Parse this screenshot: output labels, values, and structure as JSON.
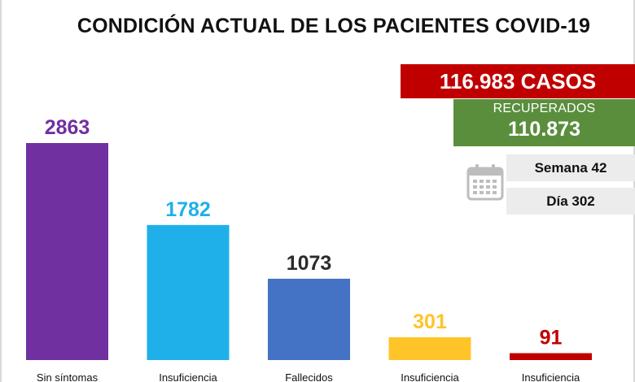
{
  "colors": {
    "purple": "#7030A0",
    "light_blue": "#1FB0EA",
    "blue": "#4472C4",
    "yellow": "#FFC428",
    "red": "#C00000",
    "green": "#5A8E3D",
    "icon_gray": "#bdbdbd"
  },
  "chart_data": {
    "type": "bar",
    "title": "CONDICIÓN ACTUAL DE LOS PACIENTES COVID-19",
    "categories": [
      "Sin síntomas",
      "Insuficiencia",
      "Fallecidos",
      "Insuficiencia",
      "Insuficiencia"
    ],
    "values": [
      2863,
      1782,
      1073,
      301,
      91
    ],
    "value_colors": [
      "#7030A0",
      "#1FB0EA",
      "#2B2B2B",
      "#FFC428",
      "#C00000"
    ],
    "bar_colors": [
      "#7030A0",
      "#1FB0EA",
      "#4472C4",
      "#FFC428",
      "#C00000"
    ],
    "xlabel": "",
    "ylabel": "",
    "ylim": [
      0,
      2863
    ],
    "grid": false
  },
  "summary": {
    "casos": "116.983 CASOS",
    "recuperados_label": "RECUPERADOS",
    "recuperados_value": "110.873",
    "semana": "Semana 42",
    "dia": "Día 302"
  },
  "icons": {
    "calendar": "calendar-icon"
  }
}
